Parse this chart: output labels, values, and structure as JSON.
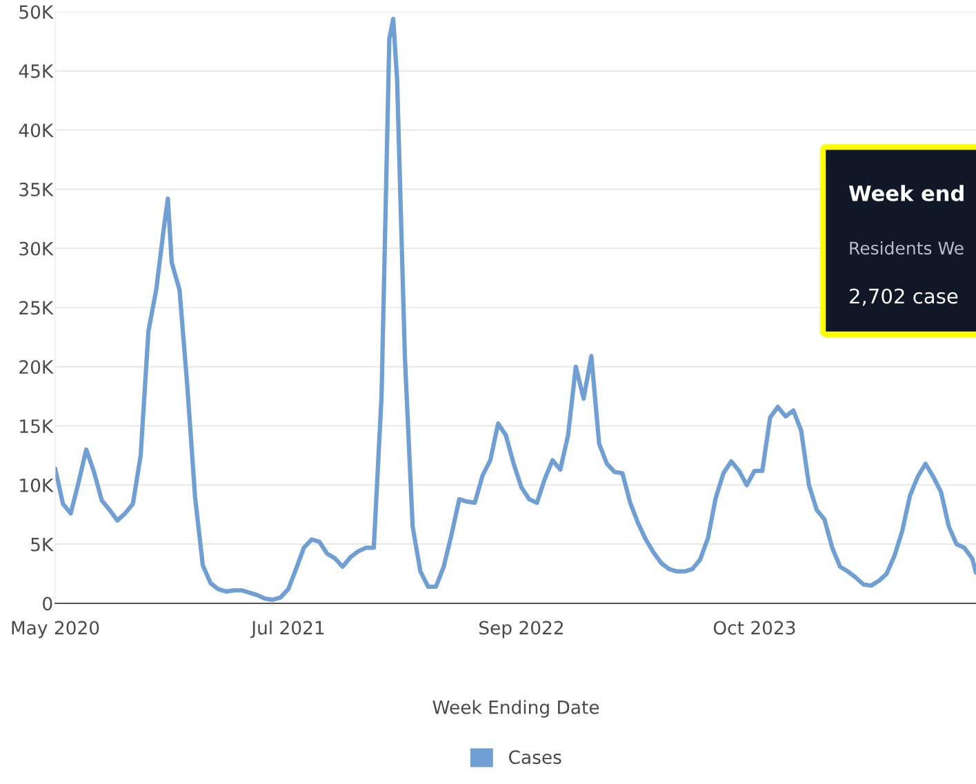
{
  "chart_data": {
    "type": "line",
    "xlabel": "Week Ending Date",
    "x": [
      "2020-05-16",
      "2020-05-30",
      "2020-06-13",
      "2020-06-27",
      "2020-07-11",
      "2020-07-25",
      "2020-08-08",
      "2020-08-22",
      "2020-09-05",
      "2020-09-19",
      "2020-10-03",
      "2020-10-17",
      "2020-10-31",
      "2020-11-14",
      "2020-11-28",
      "2020-12-05",
      "2020-12-12",
      "2020-12-26",
      "2021-01-09",
      "2021-01-23",
      "2021-02-06",
      "2021-02-20",
      "2021-03-06",
      "2021-03-20",
      "2021-04-03",
      "2021-04-17",
      "2021-05-01",
      "2021-05-15",
      "2021-05-29",
      "2021-06-12",
      "2021-06-26",
      "2021-07-10",
      "2021-07-24",
      "2021-08-07",
      "2021-08-21",
      "2021-09-04",
      "2021-09-18",
      "2021-10-02",
      "2021-10-16",
      "2021-10-30",
      "2021-11-13",
      "2021-11-27",
      "2021-12-11",
      "2021-12-25",
      "2022-01-08",
      "2022-01-15",
      "2022-01-22",
      "2022-02-05",
      "2022-02-19",
      "2022-03-05",
      "2022-03-19",
      "2022-04-02",
      "2022-04-16",
      "2022-04-30",
      "2022-05-14",
      "2022-05-28",
      "2022-06-11",
      "2022-06-25",
      "2022-07-09",
      "2022-07-23",
      "2022-08-06",
      "2022-08-20",
      "2022-09-03",
      "2022-09-17",
      "2022-10-01",
      "2022-10-15",
      "2022-10-29",
      "2022-11-12",
      "2022-11-26",
      "2022-12-10",
      "2022-12-24",
      "2023-01-07",
      "2023-01-21",
      "2023-02-04",
      "2023-02-18",
      "2023-03-04",
      "2023-03-18",
      "2023-04-01",
      "2023-04-15",
      "2023-04-29",
      "2023-05-13",
      "2023-05-27",
      "2023-06-10",
      "2023-06-24",
      "2023-07-08",
      "2023-07-22",
      "2023-08-05",
      "2023-08-19",
      "2023-09-02",
      "2023-09-16",
      "2023-09-30",
      "2023-10-14",
      "2023-10-28",
      "2023-11-11",
      "2023-11-25",
      "2023-12-09",
      "2023-12-23",
      "2024-01-06",
      "2024-01-20",
      "2024-02-03",
      "2024-02-17",
      "2024-03-02",
      "2024-03-16",
      "2024-03-30",
      "2024-04-13",
      "2024-04-27",
      "2024-05-11",
      "2024-05-25",
      "2024-06-08",
      "2024-06-22",
      "2024-07-06",
      "2024-07-20",
      "2024-08-03",
      "2024-08-17",
      "2024-08-31",
      "2024-09-14",
      "2024-09-28",
      "2024-10-12",
      "2024-10-26",
      "2024-11-09",
      "2024-11-23",
      "2024-11-30"
    ],
    "series": [
      {
        "name": "Cases",
        "color": "#6f9fd3",
        "values": [
          11400,
          8400,
          7600,
          10200,
          13000,
          11100,
          8700,
          7900,
          7000,
          7600,
          8400,
          12500,
          23000,
          26500,
          31800,
          34200,
          28800,
          26500,
          18400,
          9000,
          3200,
          1700,
          1200,
          1000,
          1100,
          1100,
          900,
          700,
          400,
          300,
          500,
          1200,
          2900,
          4700,
          5400,
          5200,
          4200,
          3800,
          3100,
          3900,
          4400,
          4700,
          4700,
          17500,
          47700,
          49400,
          44300,
          20900,
          6500,
          2700,
          1400,
          1400,
          3100,
          5800,
          8800,
          8600,
          8500,
          10800,
          12100,
          15200,
          14200,
          11800,
          9800,
          8800,
          8500,
          10500,
          12100,
          11300,
          14200,
          20000,
          17300,
          20900,
          13500,
          11800,
          11100,
          11000,
          8500,
          6800,
          5400,
          4300,
          3400,
          2900,
          2700,
          2700,
          2900,
          3700,
          5500,
          8900,
          11000,
          12000,
          11200,
          10000,
          11200,
          11200,
          15700,
          16600,
          15800,
          16300,
          14600,
          10000,
          7900,
          7100,
          4700,
          3100,
          2700,
          2200,
          1600,
          1500,
          1900,
          2500,
          4000,
          6100,
          9100,
          10700,
          11800,
          10700,
          9400,
          6500,
          5000,
          4700,
          3800,
          2600
        ]
      }
    ],
    "xlim": [
      "2020-05-16",
      "2024-11-30"
    ],
    "xticks": [
      {
        "value": "2020-05-16",
        "label": "May 2020"
      },
      {
        "value": "2021-07-10",
        "label": "Jul 2021"
      },
      {
        "value": "2022-09-03",
        "label": "Sep 2022"
      },
      {
        "value": "2023-10-28",
        "label": "Oct 2023"
      }
    ],
    "ylim": [
      0,
      50000
    ],
    "yticks": [
      {
        "value": 0,
        "label": "0"
      },
      {
        "value": 5000,
        "label": "5K"
      },
      {
        "value": 10000,
        "label": "10K"
      },
      {
        "value": 15000,
        "label": "15K"
      },
      {
        "value": 20000,
        "label": "20K"
      },
      {
        "value": 25000,
        "label": "25K"
      },
      {
        "value": 30000,
        "label": "30K"
      },
      {
        "value": 35000,
        "label": "35K"
      },
      {
        "value": 40000,
        "label": "40K"
      },
      {
        "value": 45000,
        "label": "45K"
      },
      {
        "value": 50000,
        "label": "50K"
      }
    ],
    "grid": "y",
    "legend": "bottom",
    "marker": "none",
    "line_style": "solid",
    "annotations": [
      "Week end",
      "Residents We",
      "2,702 case"
    ]
  }
}
